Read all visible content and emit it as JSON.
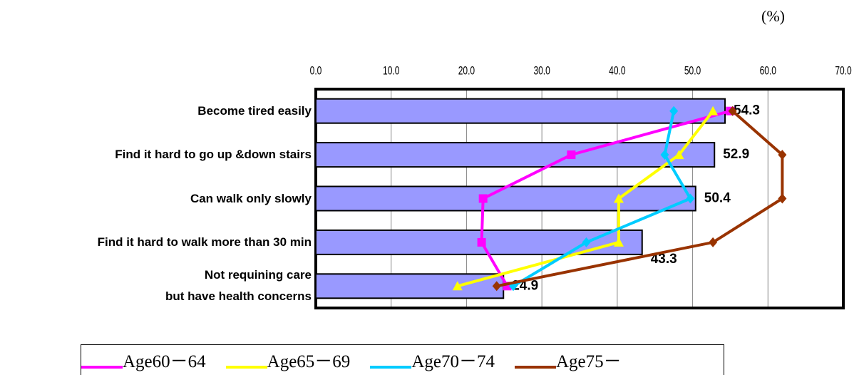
{
  "chart_data": {
    "type": "bar-line",
    "unit_label": "(%)",
    "categories": [
      "Become tired easily",
      "Find it hard to go up &down stairs",
      "Can walk only slowly",
      "Find it hard to walk more than 30 min",
      "Not requining care\nbut have health concerns"
    ],
    "values": [
      54.3,
      52.9,
      50.4,
      43.3,
      24.9
    ],
    "color": "#9999ff",
    "xlim": [
      0,
      70
    ],
    "xticks": [
      {
        "value": 0,
        "label": "0.0"
      },
      {
        "value": 10,
        "label": "10.0"
      },
      {
        "value": 20,
        "label": "20.0"
      },
      {
        "value": 30,
        "label": "30.0"
      },
      {
        "value": 40,
        "label": "40.0"
      },
      {
        "value": 50,
        "label": "50.0"
      },
      {
        "value": 60,
        "label": "60.0"
      },
      {
        "value": 70,
        "label": "70.0"
      }
    ],
    "grid": true,
    "series": [
      {
        "name": "Age60－64",
        "color": "#ff00ff",
        "marker": "square",
        "values": [
          55.0,
          33.9,
          22.2,
          22.0,
          25.4
        ]
      },
      {
        "name": "Age65－69",
        "color": "#ffff00",
        "marker": "triangle",
        "values": [
          52.7,
          48.2,
          40.2,
          40.2,
          18.8
        ]
      },
      {
        "name": "Age70－74",
        "color": "#00ccff",
        "marker": "diamond",
        "values": [
          47.5,
          46.3,
          49.7,
          35.9,
          26.2
        ]
      },
      {
        "name": "Age75－",
        "color": "#993300",
        "marker": "diamond",
        "values": [
          55.3,
          61.9,
          61.9,
          52.7,
          24.0
        ]
      }
    ]
  }
}
